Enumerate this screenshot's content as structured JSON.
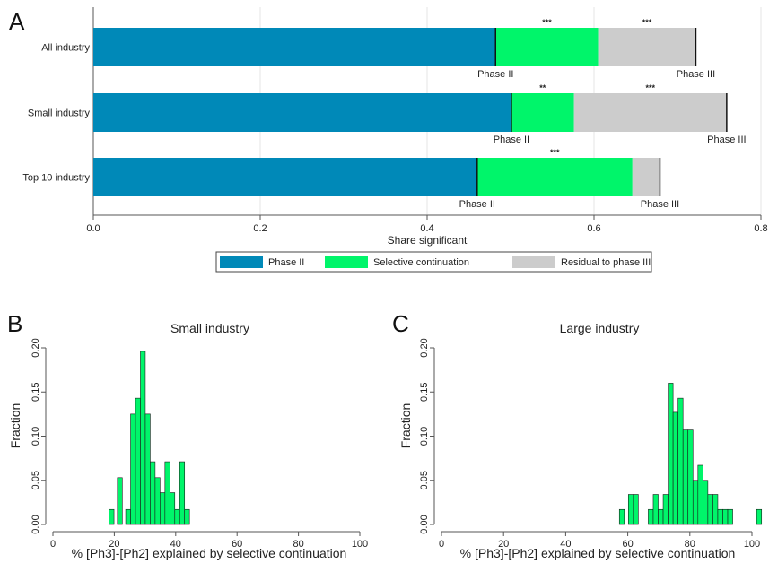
{
  "colors": {
    "phase2": "#0089b8",
    "selective": "#00f56a",
    "residual": "#cccccc",
    "grid": "#e6e6e6",
    "axis": "#555555",
    "hist": "#00f56a"
  },
  "chart_data": [
    {
      "panel": "A",
      "type": "bar",
      "orientation": "horizontal",
      "stacked": true,
      "xlabel": "Share significant",
      "xlim": [
        0,
        0.8
      ],
      "xticks": [
        "0.0",
        "0.2",
        "0.4",
        "0.6",
        "0.8"
      ],
      "categories": [
        "All industry",
        "Small industry",
        "Top 10 industry"
      ],
      "series": [
        {
          "name": "Phase II",
          "values": [
            0.482,
            0.501,
            0.46
          ]
        },
        {
          "name": "Selective continuation",
          "values": [
            0.123,
            0.075,
            0.186
          ]
        },
        {
          "name": "Residual to phase III",
          "values": [
            0.117,
            0.183,
            0.033
          ]
        }
      ],
      "phase_labels": {
        "phase2": "Phase II",
        "phase3": "Phase III"
      },
      "significance": {
        "selective": [
          "***",
          "**",
          "***"
        ],
        "residual": [
          "***",
          "***",
          ""
        ]
      },
      "legend": [
        "Phase II",
        "Selective continuation",
        "Residual to phase III"
      ],
      "legend_position": "bottom"
    },
    {
      "panel": "B",
      "type": "bar",
      "histogram": true,
      "title": "Small industry",
      "xlabel": "% [Ph3]-[Ph2] explained by selective continuation",
      "ylabel": "Fraction",
      "xlim": [
        0,
        100
      ],
      "ylim": [
        0,
        0.2
      ],
      "xticks": [
        "0",
        "20",
        "40",
        "60",
        "80",
        "100"
      ],
      "yticks": [
        "0.00",
        "0.05",
        "0.10",
        "0.15",
        "0.20"
      ],
      "bin_width": 1.6,
      "bins": [
        {
          "x": 18.3,
          "y": 0.017
        },
        {
          "x": 19.9,
          "y": 0.0
        },
        {
          "x": 21.0,
          "y": 0.053
        },
        {
          "x": 23.7,
          "y": 0.017
        },
        {
          "x": 25.3,
          "y": 0.125
        },
        {
          "x": 26.9,
          "y": 0.143
        },
        {
          "x": 28.5,
          "y": 0.196
        },
        {
          "x": 30.1,
          "y": 0.125
        },
        {
          "x": 31.7,
          "y": 0.071
        },
        {
          "x": 33.3,
          "y": 0.053
        },
        {
          "x": 34.9,
          "y": 0.036
        },
        {
          "x": 36.5,
          "y": 0.071
        },
        {
          "x": 38.1,
          "y": 0.036
        },
        {
          "x": 39.7,
          "y": 0.017
        },
        {
          "x": 41.3,
          "y": 0.071
        },
        {
          "x": 42.9,
          "y": 0.017
        }
      ]
    },
    {
      "panel": "C",
      "type": "bar",
      "histogram": true,
      "title": "Large industry",
      "xlabel": "% [Ph3]-[Ph2] explained by selective continuation",
      "ylabel": "Fraction",
      "xlim": [
        0,
        100
      ],
      "ylim": [
        0,
        0.2
      ],
      "xticks": [
        "0",
        "20",
        "40",
        "60",
        "80",
        "100"
      ],
      "yticks": [
        "0.00",
        "0.05",
        "0.10",
        "0.15",
        "0.20"
      ],
      "bin_width": 1.6,
      "bins": [
        {
          "x": 57.3,
          "y": 0.017
        },
        {
          "x": 58.9,
          "y": 0.0
        },
        {
          "x": 60.2,
          "y": 0.034
        },
        {
          "x": 61.8,
          "y": 0.034
        },
        {
          "x": 66.6,
          "y": 0.017
        },
        {
          "x": 68.2,
          "y": 0.034
        },
        {
          "x": 69.8,
          "y": 0.017
        },
        {
          "x": 71.4,
          "y": 0.034
        },
        {
          "x": 73.0,
          "y": 0.16
        },
        {
          "x": 74.6,
          "y": 0.127
        },
        {
          "x": 76.2,
          "y": 0.143
        },
        {
          "x": 77.8,
          "y": 0.107
        },
        {
          "x": 79.4,
          "y": 0.107
        },
        {
          "x": 81.0,
          "y": 0.05
        },
        {
          "x": 82.6,
          "y": 0.067
        },
        {
          "x": 84.2,
          "y": 0.05
        },
        {
          "x": 85.8,
          "y": 0.034
        },
        {
          "x": 87.4,
          "y": 0.034
        },
        {
          "x": 89.0,
          "y": 0.017
        },
        {
          "x": 90.6,
          "y": 0.017
        },
        {
          "x": 92.2,
          "y": 0.017
        },
        {
          "x": 101.5,
          "y": 0.017
        }
      ]
    }
  ]
}
